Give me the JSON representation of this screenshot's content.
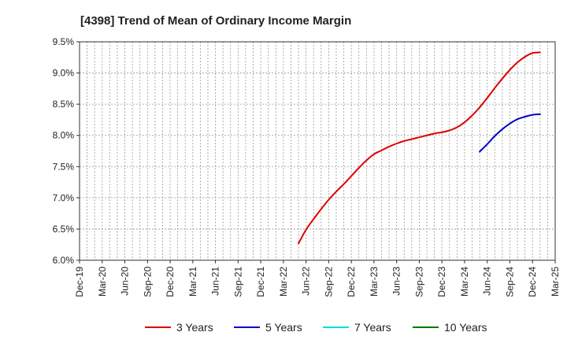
{
  "chart_data": {
    "type": "line",
    "title": "[4398]  Trend of Mean of Ordinary Income Margin",
    "xlabel": "",
    "ylabel": "",
    "x_ticks": [
      "Dec-19",
      "Mar-20",
      "Jun-20",
      "Sep-20",
      "Dec-20",
      "Mar-21",
      "Jun-21",
      "Sep-21",
      "Dec-21",
      "Mar-22",
      "Jun-22",
      "Sep-22",
      "Dec-22",
      "Mar-23",
      "Jun-23",
      "Sep-23",
      "Dec-23",
      "Mar-24",
      "Jun-24",
      "Sep-24",
      "Dec-24",
      "Mar-25"
    ],
    "y_ticks": [
      "6.0%",
      "6.5%",
      "7.0%",
      "7.5%",
      "8.0%",
      "8.5%",
      "9.0%",
      "9.5%"
    ],
    "ylim": [
      6.0,
      9.5
    ],
    "grid": true,
    "legend_position": "bottom",
    "series": [
      {
        "name": "3 Years",
        "color": "#dd0000",
        "points": [
          {
            "x": "May-22",
            "y": 6.27
          },
          {
            "x": "Jun-22",
            "y": 6.49
          },
          {
            "x": "Jul-22",
            "y": 6.66
          },
          {
            "x": "Aug-22",
            "y": 6.82
          },
          {
            "x": "Sep-22",
            "y": 6.97
          },
          {
            "x": "Oct-22",
            "y": 7.1
          },
          {
            "x": "Nov-22",
            "y": 7.22
          },
          {
            "x": "Dec-22",
            "y": 7.35
          },
          {
            "x": "Jan-23",
            "y": 7.48
          },
          {
            "x": "Feb-23",
            "y": 7.6
          },
          {
            "x": "Mar-23",
            "y": 7.7
          },
          {
            "x": "Apr-23",
            "y": 7.76
          },
          {
            "x": "May-23",
            "y": 7.82
          },
          {
            "x": "Jun-23",
            "y": 7.87
          },
          {
            "x": "Jul-23",
            "y": 7.91
          },
          {
            "x": "Aug-23",
            "y": 7.94
          },
          {
            "x": "Sep-23",
            "y": 7.97
          },
          {
            "x": "Oct-23",
            "y": 8.0
          },
          {
            "x": "Nov-23",
            "y": 8.03
          },
          {
            "x": "Dec-23",
            "y": 8.05
          },
          {
            "x": "Jan-24",
            "y": 8.08
          },
          {
            "x": "Feb-24",
            "y": 8.13
          },
          {
            "x": "Mar-24",
            "y": 8.21
          },
          {
            "x": "Apr-24",
            "y": 8.32
          },
          {
            "x": "May-24",
            "y": 8.45
          },
          {
            "x": "Jun-24",
            "y": 8.6
          },
          {
            "x": "Jul-24",
            "y": 8.76
          },
          {
            "x": "Aug-24",
            "y": 8.91
          },
          {
            "x": "Sep-24",
            "y": 9.05
          },
          {
            "x": "Oct-24",
            "y": 9.17
          },
          {
            "x": "Nov-24",
            "y": 9.26
          },
          {
            "x": "Dec-24",
            "y": 9.32
          },
          {
            "x": "Jan-25",
            "y": 9.33
          }
        ]
      },
      {
        "name": "5 Years",
        "color": "#0000cc",
        "points": [
          {
            "x": "May-24",
            "y": 7.74
          },
          {
            "x": "Jun-24",
            "y": 7.86
          },
          {
            "x": "Jul-24",
            "y": 7.99
          },
          {
            "x": "Aug-24",
            "y": 8.1
          },
          {
            "x": "Sep-24",
            "y": 8.19
          },
          {
            "x": "Oct-24",
            "y": 8.26
          },
          {
            "x": "Nov-24",
            "y": 8.3
          },
          {
            "x": "Dec-24",
            "y": 8.33
          },
          {
            "x": "Jan-25",
            "y": 8.34
          }
        ]
      },
      {
        "name": "7 Years",
        "color": "#00dddd",
        "points": []
      },
      {
        "name": "10 Years",
        "color": "#007700",
        "points": []
      }
    ]
  }
}
